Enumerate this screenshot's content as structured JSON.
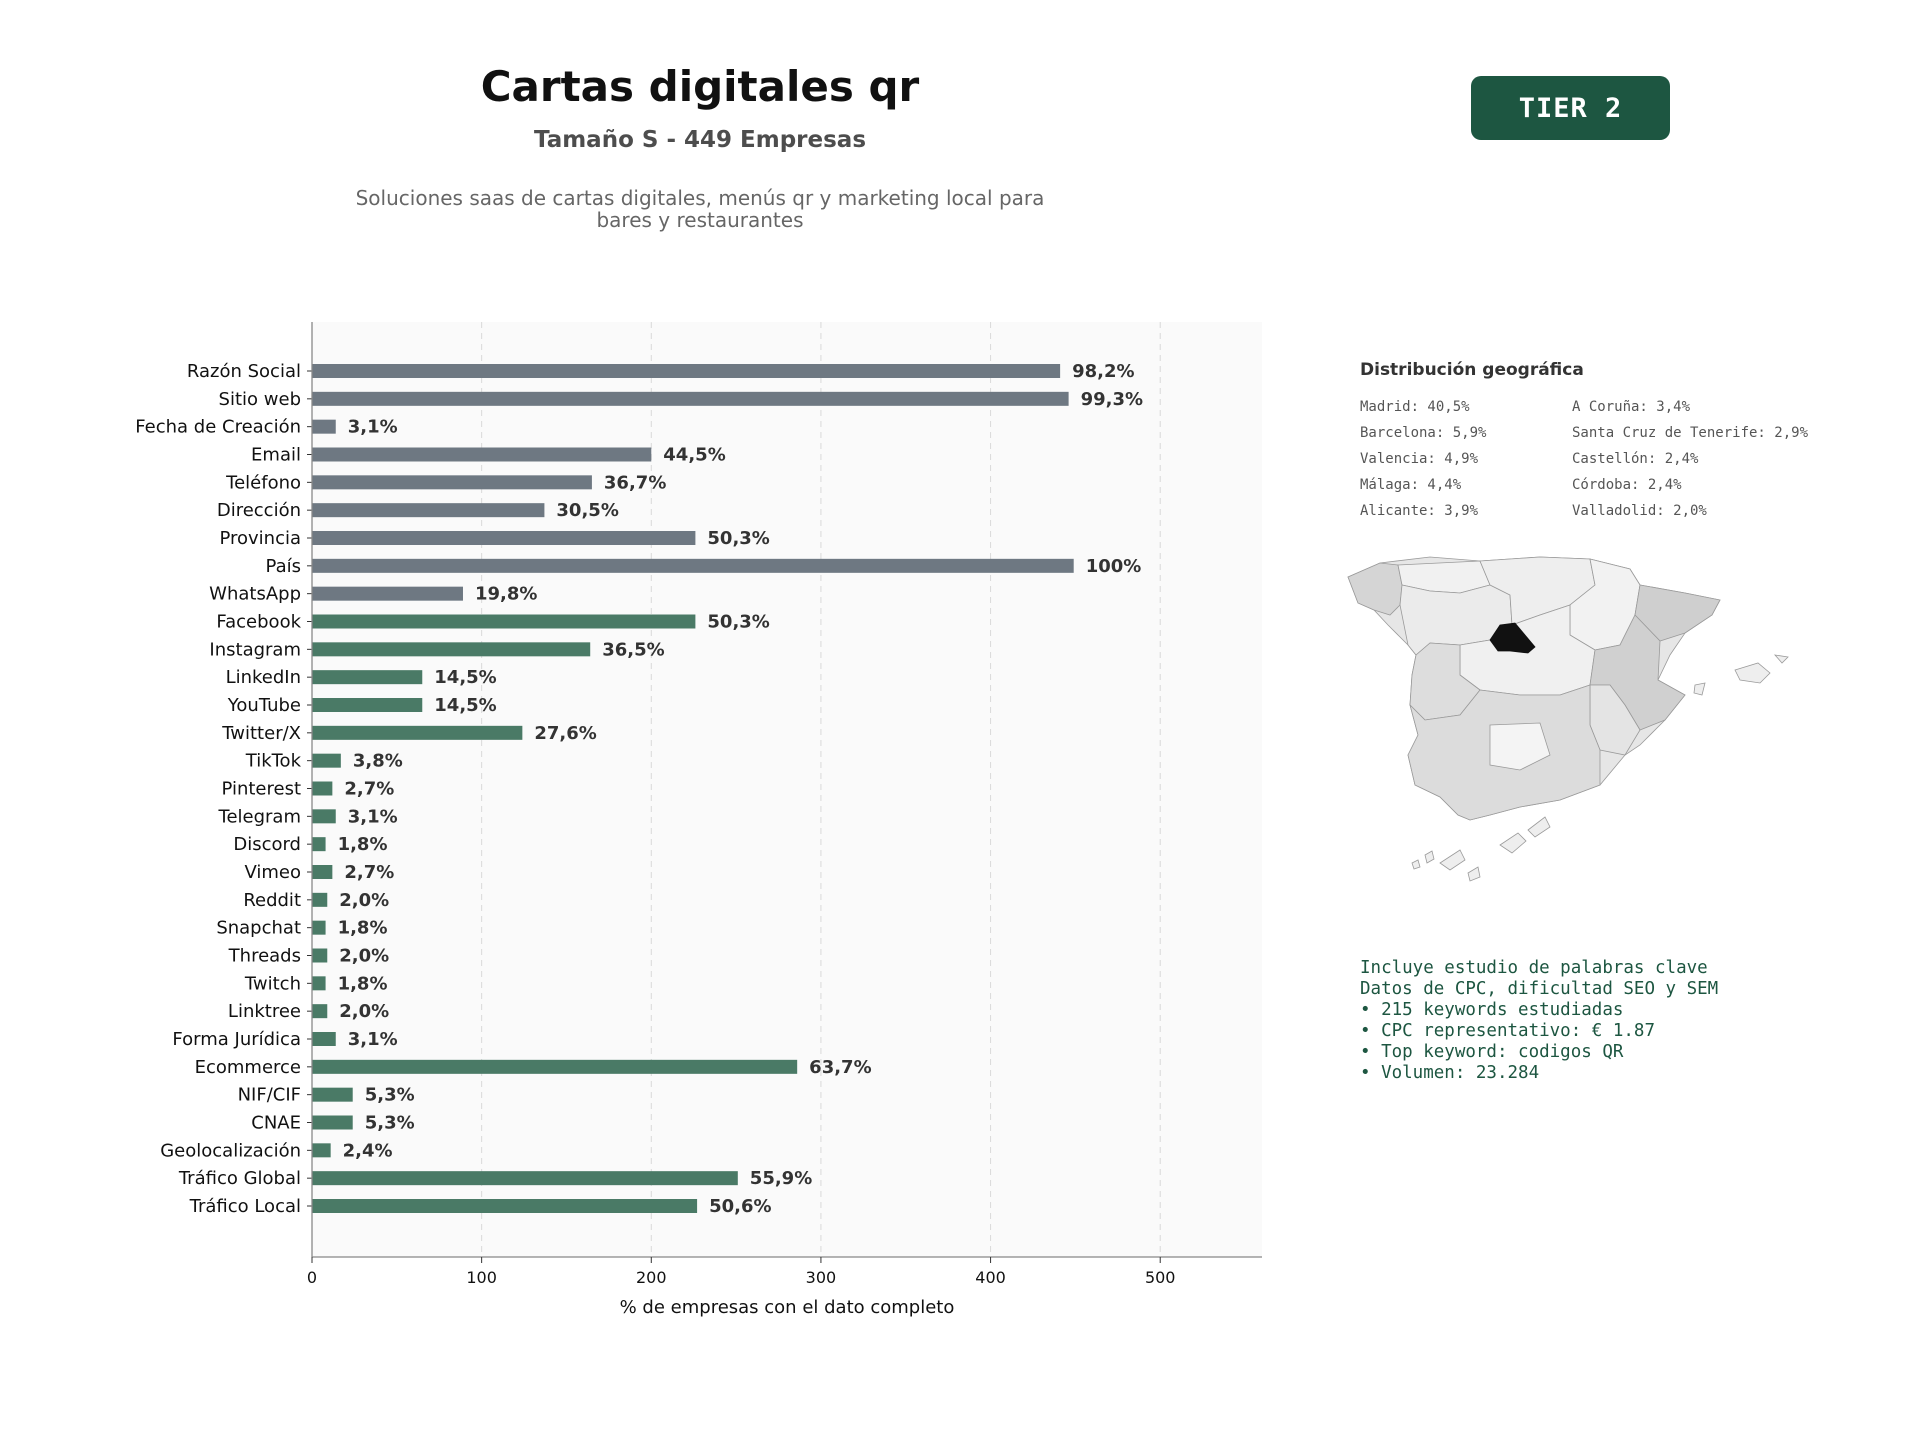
{
  "header": {
    "title": "Cartas digitales qr",
    "subtitle": "Tamaño S - 449 Empresas",
    "description_lines": [
      "Soluciones saas de cartas digitales, menús qr y marketing local para",
      "bares y restaurantes"
    ],
    "tier": "TIER 2"
  },
  "colors": {
    "base_bar": "#6e7882",
    "social_bar": "#4a7a66",
    "badge_bg": "#1d5641",
    "madrid": "#111111"
  },
  "chart_data": {
    "type": "bar",
    "orientation": "horizontal",
    "xlabel": "% de empresas con el dato completo",
    "xlim": [
      0,
      560
    ],
    "xticks": [
      0,
      100,
      200,
      300,
      400,
      500
    ],
    "grid": true,
    "categories": [
      "Razón Social",
      "Sitio web",
      "Fecha de Creación",
      "Email",
      "Teléfono",
      "Dirección",
      "Provincia",
      "País",
      "WhatsApp",
      "Facebook",
      "Instagram",
      "LinkedIn",
      "YouTube",
      "Twitter/X",
      "TikTok",
      "Pinterest",
      "Telegram",
      "Discord",
      "Vimeo",
      "Reddit",
      "Snapchat",
      "Threads",
      "Twitch",
      "Linktree",
      "Forma Jurídica",
      "Ecommerce",
      "NIF/CIF",
      "CNAE",
      "Geolocalización",
      "Tráfico Global",
      "Tráfico Local"
    ],
    "values": [
      441,
      446,
      14,
      200,
      165,
      137,
      226,
      449,
      89,
      226,
      164,
      65,
      65,
      124,
      17,
      12,
      14,
      8,
      12,
      9,
      8,
      9,
      8,
      9,
      14,
      286,
      24,
      24,
      11,
      251,
      227
    ],
    "labels": [
      "98,2%",
      "99,3%",
      "3,1%",
      "44,5%",
      "36,7%",
      "30,5%",
      "50,3%",
      "100%",
      "19,8%",
      "50,3%",
      "36,5%",
      "14,5%",
      "14,5%",
      "27,6%",
      "3,8%",
      "2,7%",
      "3,1%",
      "1,8%",
      "2,7%",
      "2,0%",
      "1,8%",
      "2,0%",
      "1,8%",
      "2,0%",
      "3,1%",
      "63,7%",
      "5,3%",
      "5,3%",
      "2,4%",
      "55,9%",
      "50,6%"
    ],
    "groups": [
      "base",
      "base",
      "base",
      "base",
      "base",
      "base",
      "base",
      "base",
      "base",
      "social",
      "social",
      "social",
      "social",
      "social",
      "social",
      "social",
      "social",
      "social",
      "social",
      "social",
      "social",
      "social",
      "social",
      "social",
      "social",
      "social",
      "social",
      "social",
      "social",
      "social",
      "social"
    ]
  },
  "geo": {
    "title": "Distribución geográfica",
    "col1": [
      "Madrid: 40,5%",
      "Barcelona: 5,9%",
      "Valencia: 4,9%",
      "Málaga: 4,4%",
      "Alicante: 3,9%"
    ],
    "col2": [
      "A Coruña: 3,4%",
      "Santa Cruz de Tenerife: 2,9%",
      "Castellón: 2,4%",
      "Córdoba: 2,4%",
      "Valladolid: 2,0%"
    ]
  },
  "keywords": {
    "lines": [
      "Incluye estudio de palabras clave",
      "Datos de CPC, dificultad SEO y SEM",
      "",
      "• 215 keywords estudiadas",
      "• CPC representativo: € 1.87",
      "• Top keyword: codigos QR",
      "• Volumen: 23.284"
    ]
  }
}
